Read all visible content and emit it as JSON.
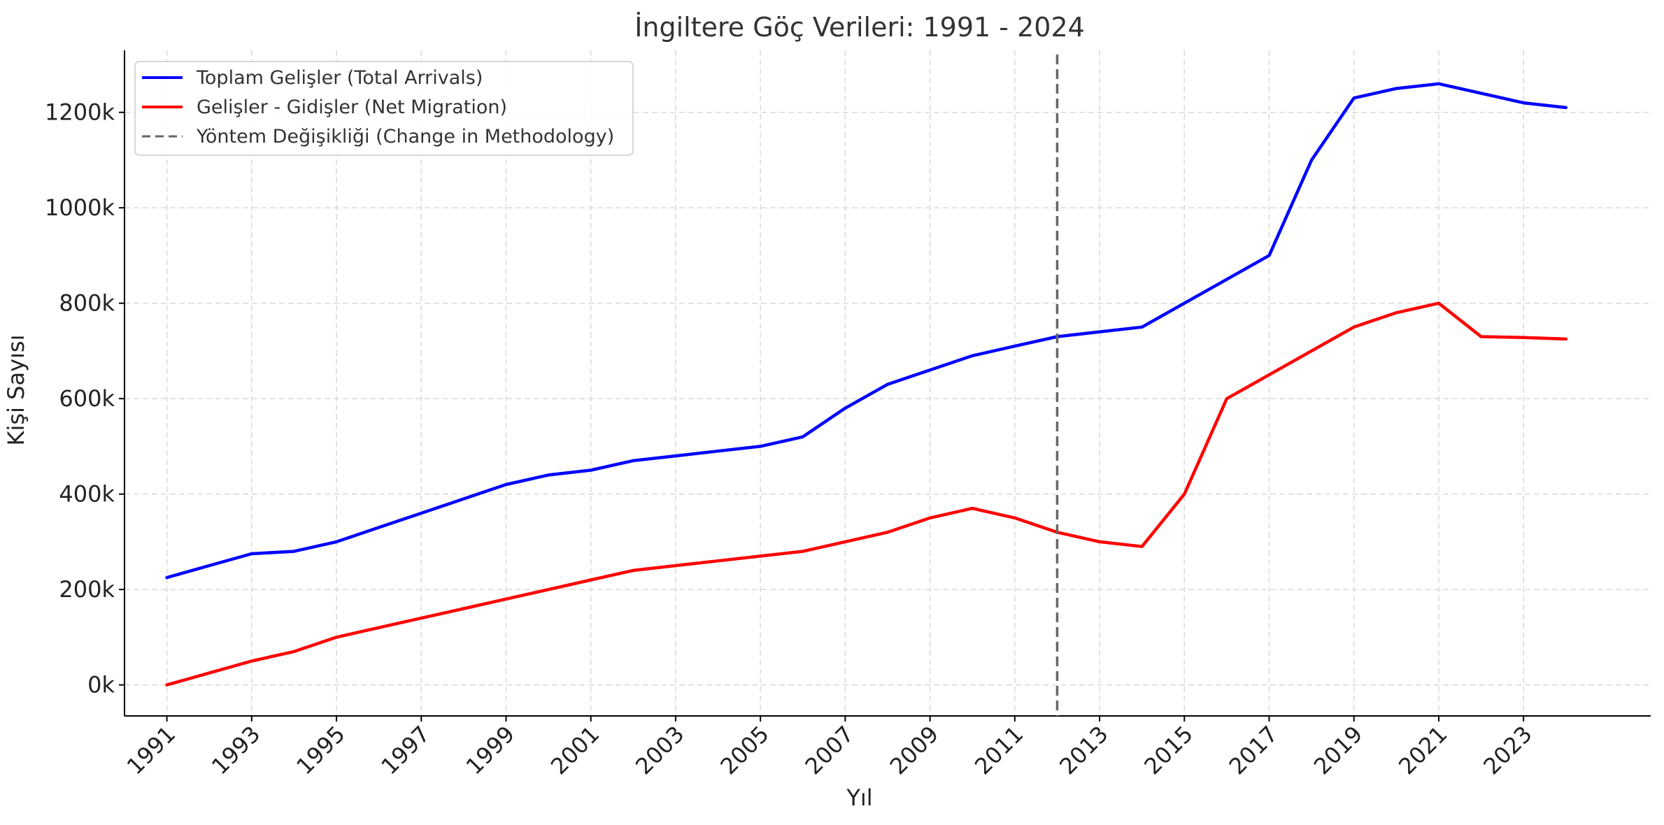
{
  "chart_data": {
    "type": "line",
    "title": "İngiltere Göç Verileri: 1991 - 2024",
    "xlabel": "Yıl",
    "ylabel": "Kişi Sayısı",
    "xlim": [
      1990,
      2026
    ],
    "ylim": [
      -65000,
      1330000
    ],
    "x_ticks": [
      1991,
      1993,
      1995,
      1997,
      1999,
      2001,
      2003,
      2005,
      2007,
      2009,
      2011,
      2013,
      2015,
      2017,
      2019,
      2021,
      2023
    ],
    "x_tick_labels": [
      "1991",
      "1993",
      "1995",
      "1997",
      "1999",
      "2001",
      "2003",
      "2005",
      "2007",
      "2009",
      "2011",
      "2013",
      "2015",
      "2017",
      "2019",
      "2021",
      "2023"
    ],
    "y_ticks": [
      0,
      200000,
      400000,
      600000,
      800000,
      1000000,
      1200000
    ],
    "y_tick_labels": [
      "0k",
      "200k",
      "400k",
      "600k",
      "800k",
      "1000k",
      "1200k"
    ],
    "grid": true,
    "legend_position": "top-left",
    "x": [
      1991,
      1992,
      1993,
      1994,
      1995,
      1996,
      1997,
      1998,
      1999,
      2000,
      2001,
      2002,
      2003,
      2004,
      2005,
      2006,
      2007,
      2008,
      2009,
      2010,
      2011,
      2012,
      2013,
      2014,
      2015,
      2016,
      2017,
      2018,
      2019,
      2020,
      2021,
      2022,
      2023,
      2024
    ],
    "series": [
      {
        "name": "Toplam Gelişler (Total Arrivals)",
        "color": "#0000ff",
        "values": [
          225000,
          250000,
          275000,
          280000,
          300000,
          330000,
          360000,
          390000,
          420000,
          440000,
          450000,
          470000,
          480000,
          490000,
          500000,
          520000,
          580000,
          630000,
          660000,
          690000,
          710000,
          730000,
          740000,
          750000,
          800000,
          850000,
          900000,
          1100000,
          1230000,
          1250000,
          1260000,
          1240000,
          1220000,
          1210000
        ]
      },
      {
        "name": "Gelişler - Gidişler (Net Migration)",
        "color": "#ff0000",
        "values": [
          0,
          25000,
          50000,
          70000,
          100000,
          120000,
          140000,
          160000,
          180000,
          200000,
          220000,
          240000,
          250000,
          260000,
          270000,
          280000,
          300000,
          320000,
          350000,
          370000,
          350000,
          320000,
          300000,
          290000,
          400000,
          600000,
          650000,
          700000,
          750000,
          780000,
          800000,
          730000,
          728000,
          725000
        ]
      }
    ],
    "vline": {
      "name": "Yöntem Değişikliği (Change in Methodology)",
      "x": 2012,
      "color": "#666666",
      "style": "dashed"
    }
  }
}
